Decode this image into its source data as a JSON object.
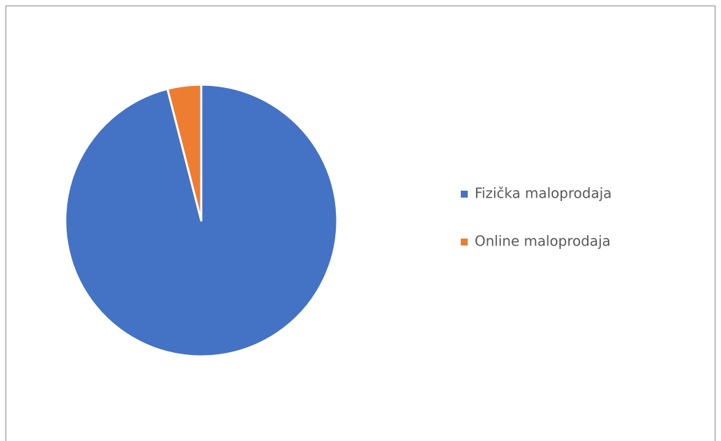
{
  "chart_data": {
    "type": "pie",
    "categories": [
      "Fizička maloprodaja",
      "Online maloprodaja"
    ],
    "values": [
      96,
      4
    ],
    "colors": [
      "#4472c4",
      "#ed7d31"
    ],
    "legend": "right"
  }
}
